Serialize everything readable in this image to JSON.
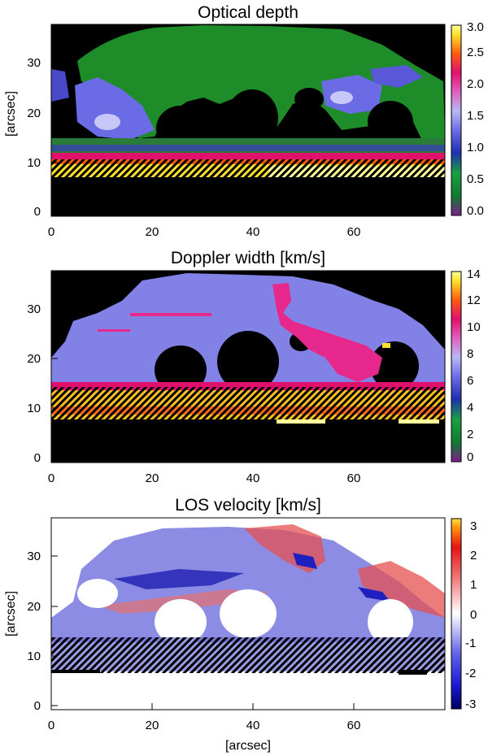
{
  "chart_data": [
    {
      "type": "heatmap",
      "title": "Optical depth",
      "xlabel": "",
      "ylabel": "[arcsec]",
      "xlim": [
        0,
        78
      ],
      "ylim": [
        -1,
        37
      ],
      "xticks": [
        0,
        20,
        40,
        60
      ],
      "yticks": [
        0,
        10,
        20,
        30
      ],
      "colorbar": {
        "min": 0.0,
        "max": 3.0,
        "ticks": [
          "0.0",
          "0.5",
          "1.0",
          "1.5",
          "2.0",
          "2.5",
          "3.0"
        ],
        "colormap": "rainbow"
      },
      "hatched_region_y": [
        7.5,
        14
      ],
      "dominant_value": 0.6
    },
    {
      "type": "heatmap",
      "title": "Doppler width [km/s]",
      "xlabel": "",
      "ylabel": "",
      "xlim": [
        0,
        78
      ],
      "ylim": [
        -1,
        37
      ],
      "xticks": [
        0,
        20,
        40,
        60
      ],
      "yticks": [
        0,
        10,
        20,
        30
      ],
      "colorbar": {
        "min": 0,
        "max": 14,
        "ticks": [
          "0",
          "2",
          "4",
          "6",
          "8",
          "10",
          "12",
          "14"
        ],
        "colormap": "rainbow"
      },
      "hatched_region_y": [
        7.5,
        14
      ],
      "dominant_value": 7.5
    },
    {
      "type": "heatmap",
      "title": "LOS velocity [km/s]",
      "xlabel": "[arcsec]",
      "ylabel": "[arcsec]",
      "xlim": [
        0,
        78
      ],
      "ylim": [
        -1,
        37
      ],
      "xticks": [
        0,
        20,
        40,
        60
      ],
      "yticks": [
        0,
        10,
        20,
        30
      ],
      "colorbar": {
        "min": -3,
        "max": 3,
        "ticks": [
          "-3",
          "-2",
          "-1",
          "0",
          "1",
          "2",
          "3"
        ],
        "colormap": "diverging"
      },
      "hatched_region_y": [
        7.5,
        14
      ],
      "dominant_value": 0
    }
  ],
  "colors": {
    "background": "#000000",
    "od_main": "#1e8c28",
    "od_secondary": "#6b6be6",
    "dw_main": "#8282e6",
    "dw_high": "#e6288c",
    "los_positive": "#e65050",
    "los_negative": "#3c3cd2"
  }
}
